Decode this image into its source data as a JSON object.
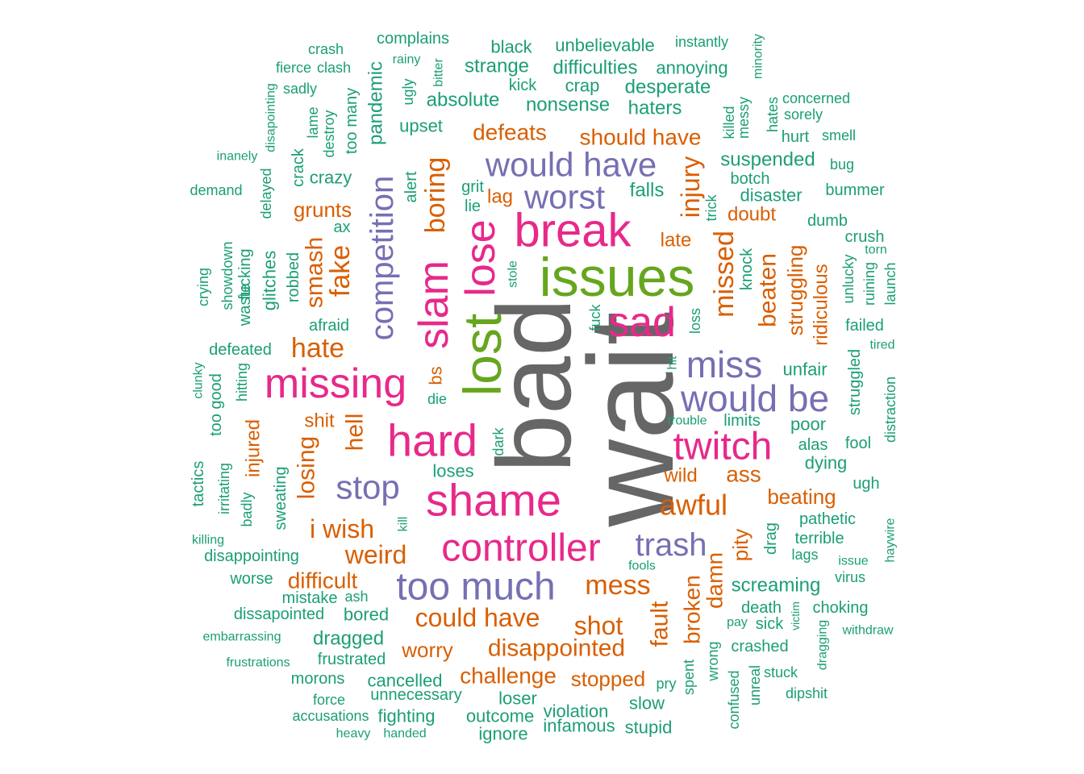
{
  "palette": {
    "gray": "#666666",
    "green": "#66a61e",
    "pink": "#e7298a",
    "purple": "#7570b3",
    "orange": "#d95f02",
    "teal": "#1b9e77"
  },
  "words": [
    {
      "text": "wait",
      "color": "gray"
    },
    {
      "text": "bad",
      "color": "gray"
    },
    {
      "text": "issues",
      "color": "green"
    },
    {
      "text": "lost",
      "color": "green"
    },
    {
      "text": "break",
      "color": "pink"
    },
    {
      "text": "lose",
      "color": "pink"
    },
    {
      "text": "slam",
      "color": "pink"
    },
    {
      "text": "sad",
      "color": "pink"
    },
    {
      "text": "hard",
      "color": "pink"
    },
    {
      "text": "shame",
      "color": "pink"
    },
    {
      "text": "missing",
      "color": "pink"
    },
    {
      "text": "controller",
      "color": "pink"
    },
    {
      "text": "twitch",
      "color": "pink"
    },
    {
      "text": "too much",
      "color": "purple"
    },
    {
      "text": "would have",
      "color": "purple"
    },
    {
      "text": "worst",
      "color": "purple"
    },
    {
      "text": "competition",
      "color": "purple"
    },
    {
      "text": "miss",
      "color": "purple"
    },
    {
      "text": "would be",
      "color": "purple"
    },
    {
      "text": "stop",
      "color": "purple"
    },
    {
      "text": "trash",
      "color": "purple"
    },
    {
      "text": "boring",
      "color": "orange"
    },
    {
      "text": "injury",
      "color": "orange"
    },
    {
      "text": "missed",
      "color": "orange"
    },
    {
      "text": "fake",
      "color": "orange"
    },
    {
      "text": "smash",
      "color": "orange"
    },
    {
      "text": "hate",
      "color": "orange"
    },
    {
      "text": "mess",
      "color": "orange"
    },
    {
      "text": "awful",
      "color": "orange"
    },
    {
      "text": "beaten",
      "color": "orange"
    },
    {
      "text": "struggling",
      "color": "orange"
    },
    {
      "text": "should have",
      "color": "orange"
    },
    {
      "text": "defeats",
      "color": "orange"
    },
    {
      "text": "grunts",
      "color": "orange"
    },
    {
      "text": "lag",
      "color": "orange"
    },
    {
      "text": "doubt",
      "color": "orange"
    },
    {
      "text": "late",
      "color": "orange"
    },
    {
      "text": "ridiculous",
      "color": "orange"
    },
    {
      "text": "hell",
      "color": "orange"
    },
    {
      "text": "shit",
      "color": "orange"
    },
    {
      "text": "losing",
      "color": "orange"
    },
    {
      "text": "i wish",
      "color": "orange"
    },
    {
      "text": "weird",
      "color": "orange"
    },
    {
      "text": "difficult",
      "color": "orange"
    },
    {
      "text": "could have",
      "color": "orange"
    },
    {
      "text": "shot",
      "color": "orange"
    },
    {
      "text": "disappointed",
      "color": "orange"
    },
    {
      "text": "worry",
      "color": "orange"
    },
    {
      "text": "challenge",
      "color": "orange"
    },
    {
      "text": "stopped",
      "color": "orange"
    },
    {
      "text": "fault",
      "color": "orange"
    },
    {
      "text": "broken",
      "color": "orange"
    },
    {
      "text": "damn",
      "color": "orange"
    },
    {
      "text": "pity",
      "color": "orange"
    },
    {
      "text": "ass",
      "color": "orange"
    },
    {
      "text": "beating",
      "color": "orange"
    },
    {
      "text": "wild",
      "color": "orange"
    },
    {
      "text": "injured",
      "color": "orange"
    },
    {
      "text": "bs",
      "color": "orange"
    },
    {
      "text": "crash",
      "color": "teal"
    },
    {
      "text": "complains",
      "color": "teal"
    },
    {
      "text": "black",
      "color": "teal"
    },
    {
      "text": "unbelievable",
      "color": "teal"
    },
    {
      "text": "instantly",
      "color": "teal"
    },
    {
      "text": "minority",
      "color": "teal"
    },
    {
      "text": "fierce",
      "color": "teal"
    },
    {
      "text": "clash",
      "color": "teal"
    },
    {
      "text": "rainy",
      "color": "teal"
    },
    {
      "text": "bitter",
      "color": "teal"
    },
    {
      "text": "strange",
      "color": "teal"
    },
    {
      "text": "difficulties",
      "color": "teal"
    },
    {
      "text": "annoying",
      "color": "teal"
    },
    {
      "text": "sadly",
      "color": "teal"
    },
    {
      "text": "disapointing",
      "color": "teal"
    },
    {
      "text": "ugly",
      "color": "teal"
    },
    {
      "text": "kick",
      "color": "teal"
    },
    {
      "text": "crap",
      "color": "teal"
    },
    {
      "text": "desperate",
      "color": "teal"
    },
    {
      "text": "absolute",
      "color": "teal"
    },
    {
      "text": "nonsense",
      "color": "teal"
    },
    {
      "text": "haters",
      "color": "teal"
    },
    {
      "text": "killed",
      "color": "teal"
    },
    {
      "text": "messy",
      "color": "teal"
    },
    {
      "text": "hates",
      "color": "teal"
    },
    {
      "text": "concerned",
      "color": "teal"
    },
    {
      "text": "sorely",
      "color": "teal"
    },
    {
      "text": "lame",
      "color": "teal"
    },
    {
      "text": "destroy",
      "color": "teal"
    },
    {
      "text": "too many",
      "color": "teal"
    },
    {
      "text": "pandemic",
      "color": "teal"
    },
    {
      "text": "upset",
      "color": "teal"
    },
    {
      "text": "hurt",
      "color": "teal"
    },
    {
      "text": "smell",
      "color": "teal"
    },
    {
      "text": "inanely",
      "color": "teal"
    },
    {
      "text": "crack",
      "color": "teal"
    },
    {
      "text": "crazy",
      "color": "teal"
    },
    {
      "text": "suspended",
      "color": "teal"
    },
    {
      "text": "botch",
      "color": "teal"
    },
    {
      "text": "bug",
      "color": "teal"
    },
    {
      "text": "demand",
      "color": "teal"
    },
    {
      "text": "delayed",
      "color": "teal"
    },
    {
      "text": "alert",
      "color": "teal"
    },
    {
      "text": "grit",
      "color": "teal"
    },
    {
      "text": "lie",
      "color": "teal"
    },
    {
      "text": "falls",
      "color": "teal"
    },
    {
      "text": "disaster",
      "color": "teal"
    },
    {
      "text": "bummer",
      "color": "teal"
    },
    {
      "text": "trick",
      "color": "teal"
    },
    {
      "text": "ax",
      "color": "teal"
    },
    {
      "text": "dumb",
      "color": "teal"
    },
    {
      "text": "crush",
      "color": "teal"
    },
    {
      "text": "torn",
      "color": "teal"
    },
    {
      "text": "showdown",
      "color": "teal"
    },
    {
      "text": "fucking",
      "color": "teal"
    },
    {
      "text": "waste",
      "color": "teal"
    },
    {
      "text": "glitches",
      "color": "teal"
    },
    {
      "text": "robbed",
      "color": "teal"
    },
    {
      "text": "crying",
      "color": "teal"
    },
    {
      "text": "stole",
      "color": "teal"
    },
    {
      "text": "knock",
      "color": "teal"
    },
    {
      "text": "ruining",
      "color": "teal"
    },
    {
      "text": "unlucky",
      "color": "teal"
    },
    {
      "text": "launch",
      "color": "teal"
    },
    {
      "text": "afraid",
      "color": "teal"
    },
    {
      "text": "fuck",
      "color": "teal"
    },
    {
      "text": "loss",
      "color": "teal"
    },
    {
      "text": "failed",
      "color": "teal"
    },
    {
      "text": "defeated",
      "color": "teal"
    },
    {
      "text": "tired",
      "color": "teal"
    },
    {
      "text": "struggled",
      "color": "teal"
    },
    {
      "text": "clunky",
      "color": "teal"
    },
    {
      "text": "hitting",
      "color": "teal"
    },
    {
      "text": "hit",
      "color": "teal"
    },
    {
      "text": "unfair",
      "color": "teal"
    },
    {
      "text": "distraction",
      "color": "teal"
    },
    {
      "text": "too good",
      "color": "teal"
    },
    {
      "text": "die",
      "color": "teal"
    },
    {
      "text": "trouble",
      "color": "teal"
    },
    {
      "text": "limits",
      "color": "teal"
    },
    {
      "text": "poor",
      "color": "teal"
    },
    {
      "text": "dark",
      "color": "teal"
    },
    {
      "text": "alas",
      "color": "teal"
    },
    {
      "text": "fool",
      "color": "teal"
    },
    {
      "text": "tactics",
      "color": "teal"
    },
    {
      "text": "irritating",
      "color": "teal"
    },
    {
      "text": "sweating",
      "color": "teal"
    },
    {
      "text": "loses",
      "color": "teal"
    },
    {
      "text": "dying",
      "color": "teal"
    },
    {
      "text": "ugh",
      "color": "teal"
    },
    {
      "text": "badly",
      "color": "teal"
    },
    {
      "text": "kill",
      "color": "teal"
    },
    {
      "text": "pathetic",
      "color": "teal"
    },
    {
      "text": "haywire",
      "color": "teal"
    },
    {
      "text": "killing",
      "color": "teal"
    },
    {
      "text": "drag",
      "color": "teal"
    },
    {
      "text": "terrible",
      "color": "teal"
    },
    {
      "text": "disappointing",
      "color": "teal"
    },
    {
      "text": "lags",
      "color": "teal"
    },
    {
      "text": "issue",
      "color": "teal"
    },
    {
      "text": "fools",
      "color": "teal"
    },
    {
      "text": "virus",
      "color": "teal"
    },
    {
      "text": "worse",
      "color": "teal"
    },
    {
      "text": "screaming",
      "color": "teal"
    },
    {
      "text": "mistake",
      "color": "teal"
    },
    {
      "text": "ash",
      "color": "teal"
    },
    {
      "text": "death",
      "color": "teal"
    },
    {
      "text": "choking",
      "color": "teal"
    },
    {
      "text": "victim",
      "color": "teal"
    },
    {
      "text": "dissapointed",
      "color": "teal"
    },
    {
      "text": "bored",
      "color": "teal"
    },
    {
      "text": "pay",
      "color": "teal"
    },
    {
      "text": "sick",
      "color": "teal"
    },
    {
      "text": "withdraw",
      "color": "teal"
    },
    {
      "text": "embarrassing",
      "color": "teal"
    },
    {
      "text": "dragged",
      "color": "teal"
    },
    {
      "text": "dragging",
      "color": "teal"
    },
    {
      "text": "crashed",
      "color": "teal"
    },
    {
      "text": "frustrations",
      "color": "teal"
    },
    {
      "text": "frustrated",
      "color": "teal"
    },
    {
      "text": "wrong",
      "color": "teal"
    },
    {
      "text": "spent",
      "color": "teal"
    },
    {
      "text": "morons",
      "color": "teal"
    },
    {
      "text": "cancelled",
      "color": "teal"
    },
    {
      "text": "confused",
      "color": "teal"
    },
    {
      "text": "unreal",
      "color": "teal"
    },
    {
      "text": "stuck",
      "color": "teal"
    },
    {
      "text": "pry",
      "color": "teal"
    },
    {
      "text": "force",
      "color": "teal"
    },
    {
      "text": "unnecessary",
      "color": "teal"
    },
    {
      "text": "loser",
      "color": "teal"
    },
    {
      "text": "slow",
      "color": "teal"
    },
    {
      "text": "dipshit",
      "color": "teal"
    },
    {
      "text": "accusations",
      "color": "teal"
    },
    {
      "text": "fighting",
      "color": "teal"
    },
    {
      "text": "outcome",
      "color": "teal"
    },
    {
      "text": "violation",
      "color": "teal"
    },
    {
      "text": "infamous",
      "color": "teal"
    },
    {
      "text": "stupid",
      "color": "teal"
    },
    {
      "text": "heavy",
      "color": "teal"
    },
    {
      "text": "handed",
      "color": "teal"
    },
    {
      "text": "ignore",
      "color": "teal"
    }
  ]
}
